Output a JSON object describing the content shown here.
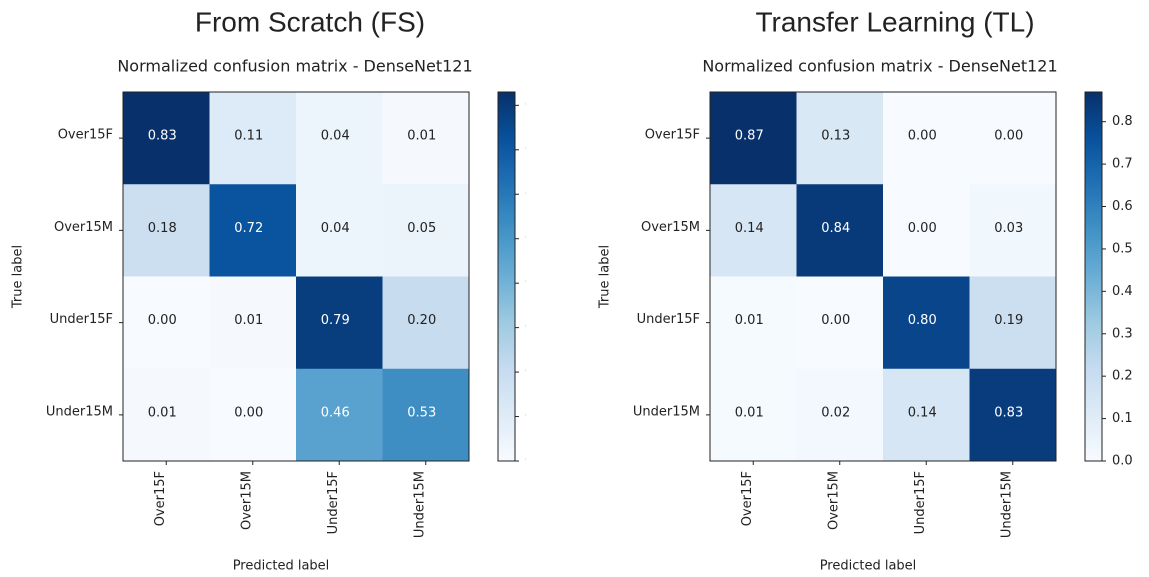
{
  "chart_data": [
    {
      "type": "heatmap",
      "title": "From Scratch (FS)",
      "subtitle": "Normalized confusion matrix - DenseNet121",
      "x_label": "Predicted label",
      "y_label": "True label",
      "categories": [
        "Over15F",
        "Over15M",
        "Under15F",
        "Under15M"
      ],
      "y_categories": [
        "Over15F",
        "Over15M",
        "Under15F",
        "Under15M"
      ],
      "values": [
        [
          0.83,
          0.11,
          0.04,
          0.01
        ],
        [
          0.18,
          0.72,
          0.04,
          0.05
        ],
        [
          0.0,
          0.01,
          0.79,
          0.2
        ],
        [
          0.01,
          0.0,
          0.46,
          0.53
        ]
      ],
      "value_labels": [
        [
          "0.83",
          "0.11",
          "0.04",
          "0.01"
        ],
        [
          "0.18",
          "0.72",
          "0.04",
          "0.05"
        ],
        [
          "0.00",
          "0.01",
          "0.79",
          "0.20"
        ],
        [
          "0.01",
          "0.00",
          "0.46",
          "0.53"
        ]
      ],
      "colormap": "Blues",
      "clim": [
        0,
        0.83
      ],
      "cticks": [
        0,
        0.1,
        0.2,
        0.3,
        0.4,
        0.5,
        0.6,
        0.7,
        0.8
      ]
    },
    {
      "type": "heatmap",
      "title": "Transfer Learning (TL)",
      "subtitle": "Normalized confusion matrix - DenseNet121",
      "x_label": "Predicted label",
      "y_label": "True label",
      "categories": [
        "Over15F",
        "Over15M",
        "Under15F",
        "Under15M"
      ],
      "y_categories": [
        "Over15F",
        "Over15M",
        "Under15F",
        "Under15M"
      ],
      "values": [
        [
          0.87,
          0.13,
          0.0,
          0.0
        ],
        [
          0.14,
          0.84,
          0.0,
          0.03
        ],
        [
          0.01,
          0.0,
          0.8,
          0.19
        ],
        [
          0.01,
          0.02,
          0.14,
          0.83
        ]
      ],
      "value_labels": [
        [
          "0.87",
          "0.13",
          "0.00",
          "0.00"
        ],
        [
          "0.14",
          "0.84",
          "0.00",
          "0.03"
        ],
        [
          "0.01",
          "0.00",
          "0.80",
          "0.19"
        ],
        [
          "0.01",
          "0.02",
          "0.14",
          "0.83"
        ]
      ],
      "colormap": "Blues",
      "clim": [
        0,
        0.87
      ],
      "cticks": [
        {
          "value": 0,
          "label": "0.0"
        },
        0.1,
        0.2,
        0.3,
        0.4,
        0.5,
        0.6,
        0.7,
        0.8
      ]
    }
  ]
}
